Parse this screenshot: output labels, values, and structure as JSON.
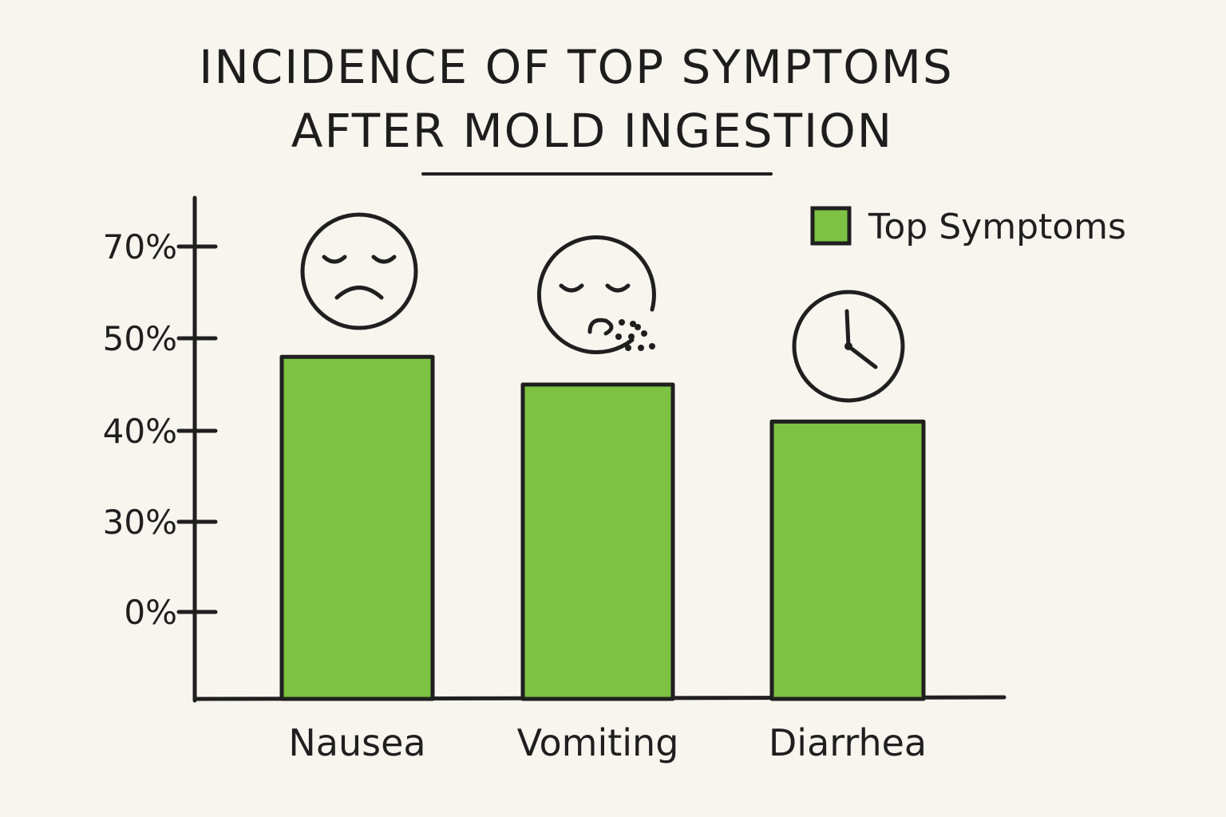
{
  "chart_data": {
    "type": "bar",
    "title_lines": [
      "INCIDENCE OF TOP SYMPTOMS",
      "AFTER MOLD INGESTION"
    ],
    "categories": [
      "Nausea",
      "Vomiting",
      "Diarrhea"
    ],
    "series": [
      {
        "name": "Top Symptoms",
        "values": [
          48,
          45,
          41
        ]
      }
    ],
    "category_icons": [
      "sad-face-icon",
      "vomiting-face-icon",
      "clock-icon"
    ],
    "y_ticks": [
      {
        "label": "0%",
        "value": 0
      },
      {
        "label": "30%",
        "value": 30
      },
      {
        "label": "40%",
        "value": 40
      },
      {
        "label": "50%",
        "value": 50
      },
      {
        "label": "70%",
        "value": 70
      }
    ],
    "xlabel": "",
    "ylabel": "",
    "legend_position": "top-right",
    "grid": false,
    "colors": {
      "bar": "#7dc242",
      "outline": "#1f1f1f",
      "background": "#f8f5ef"
    }
  }
}
